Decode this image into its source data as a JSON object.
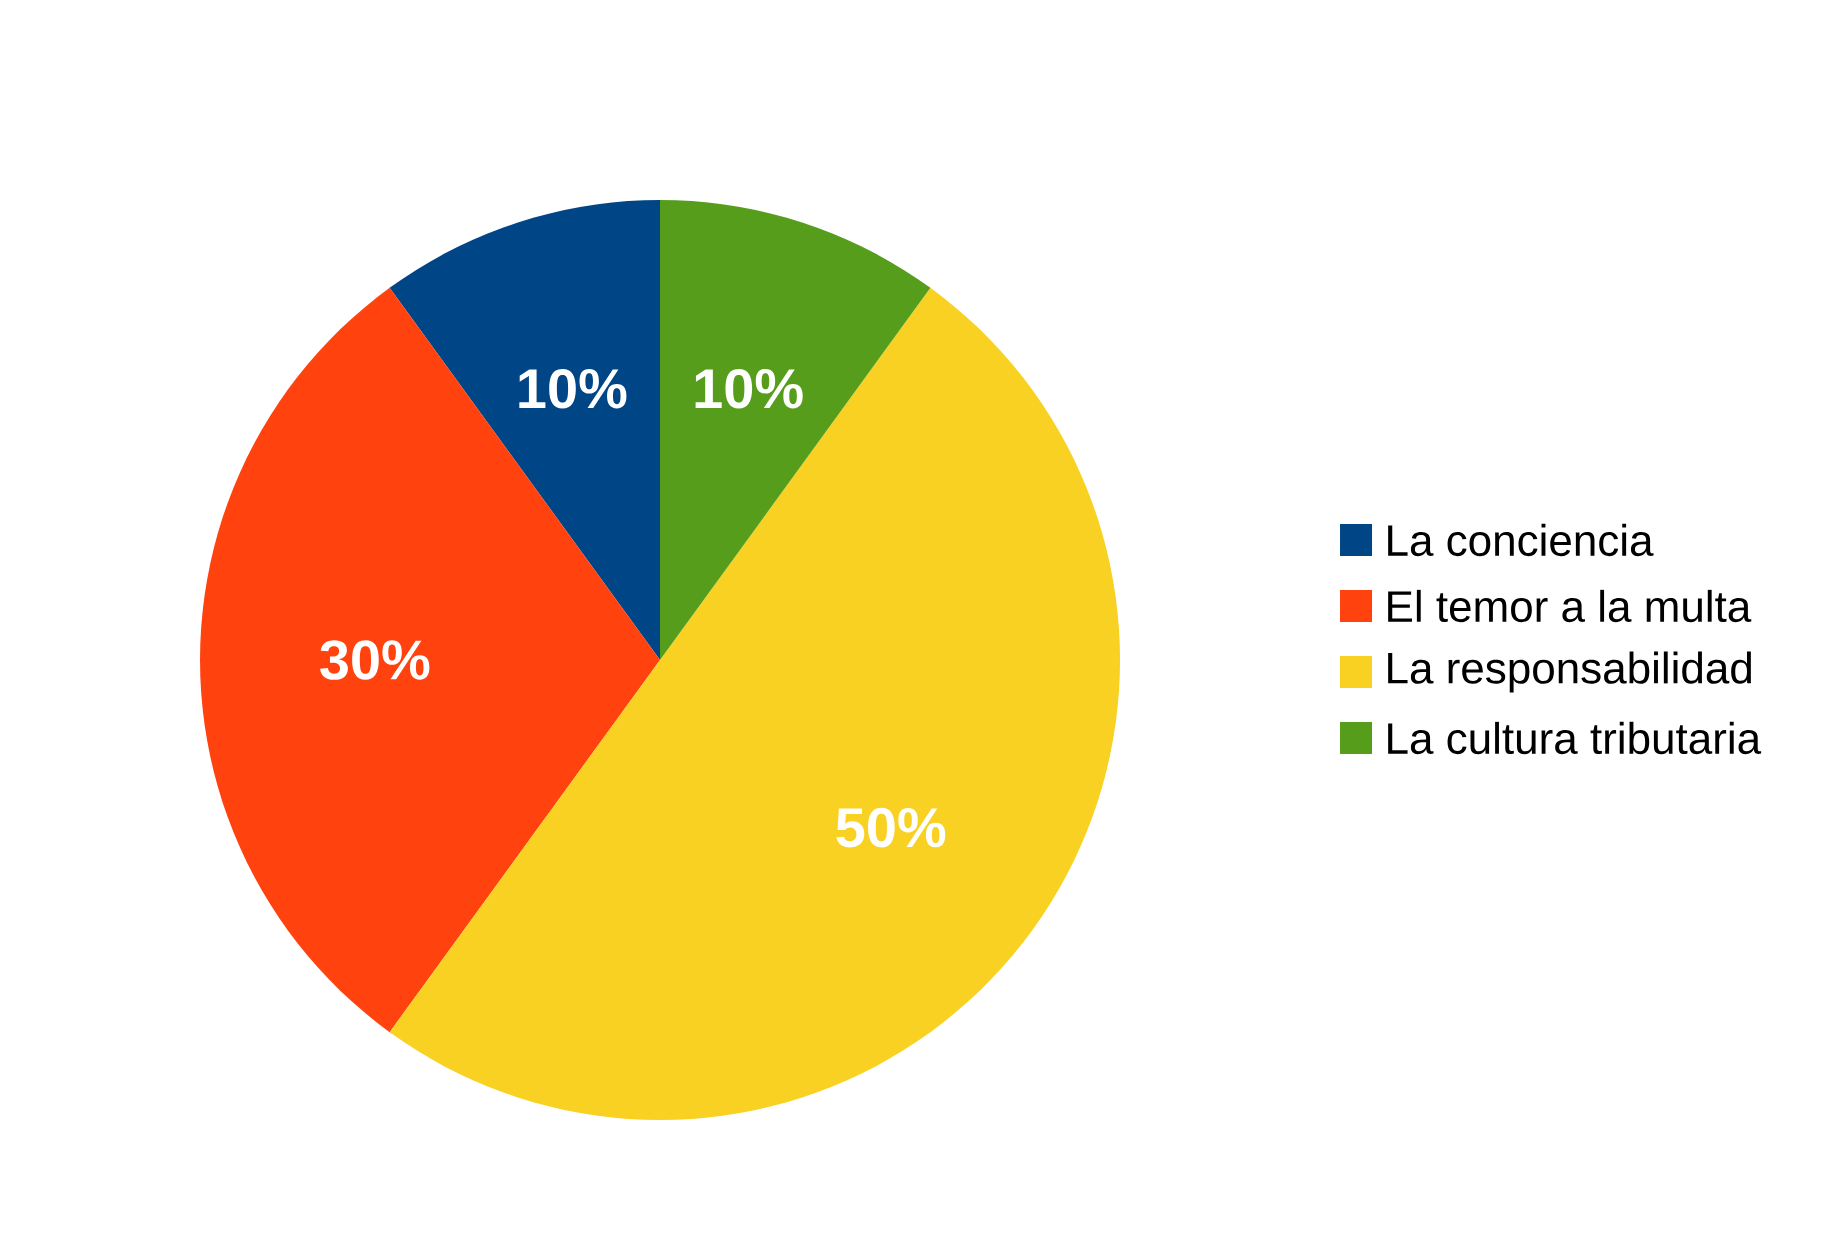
{
  "chart_data": {
    "type": "pie",
    "categories": [
      "La conciencia",
      "El temor a la multa",
      "La responsabilidad",
      "La cultura tributaria"
    ],
    "values": [
      10,
      30,
      50,
      10
    ],
    "value_labels": [
      "10%",
      "30%",
      "50%",
      "10%"
    ],
    "colors": [
      "#004586",
      "#ff420e",
      "#f8d123",
      "#579d1c"
    ],
    "legend": "right"
  }
}
